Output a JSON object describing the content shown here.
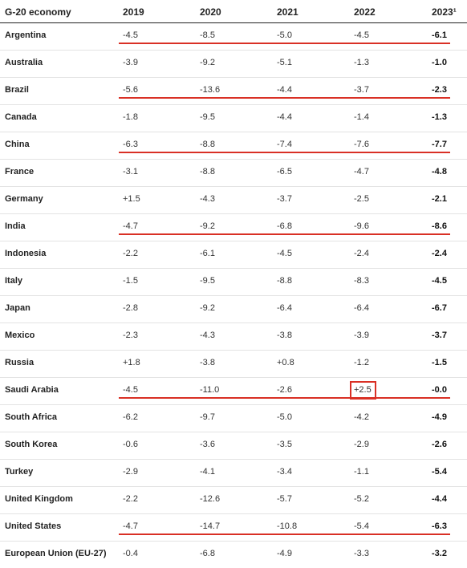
{
  "table": {
    "headers": [
      "G-20 economy",
      "2019",
      "2020",
      "2021",
      "2022",
      "2023¹"
    ],
    "rows": [
      {
        "country": "Argentina",
        "values": [
          "-4.5",
          "-8.5",
          "-5.0",
          "-4.5",
          "-6.1"
        ]
      },
      {
        "country": "Australia",
        "values": [
          "-3.9",
          "-9.2",
          "-5.1",
          "-1.3",
          "-1.0"
        ]
      },
      {
        "country": "Brazil",
        "values": [
          "-5.6",
          "-13.6",
          "-4.4",
          "-3.7",
          "-2.3"
        ]
      },
      {
        "country": "Canada",
        "values": [
          "-1.8",
          "-9.5",
          "-4.4",
          "-1.4",
          "-1.3"
        ]
      },
      {
        "country": "China",
        "values": [
          "-6.3",
          "-8.8",
          "-7.4",
          "-7.6",
          "-7.7"
        ]
      },
      {
        "country": "France",
        "values": [
          "-3.1",
          "-8.8",
          "-6.5",
          "-4.7",
          "-4.8"
        ]
      },
      {
        "country": "Germany",
        "values": [
          "+1.5",
          "-4.3",
          "-3.7",
          "-2.5",
          "-2.1"
        ]
      },
      {
        "country": "India",
        "values": [
          "-4.7",
          "-9.2",
          "-6.8",
          "-9.6",
          "-8.6"
        ]
      },
      {
        "country": "Indonesia",
        "values": [
          "-2.2",
          "-6.1",
          "-4.5",
          "-2.4",
          "-2.4"
        ]
      },
      {
        "country": "Italy",
        "values": [
          "-1.5",
          "-9.5",
          "-8.8",
          "-8.3",
          "-4.5"
        ]
      },
      {
        "country": "Japan",
        "values": [
          "-2.8",
          "-9.2",
          "-6.4",
          "-6.4",
          "-6.7"
        ]
      },
      {
        "country": "Mexico",
        "values": [
          "-2.3",
          "-4.3",
          "-3.8",
          "-3.9",
          "-3.7"
        ]
      },
      {
        "country": "Russia",
        "values": [
          "+1.8",
          "-3.8",
          "+0.8",
          "-1.2",
          "-1.5"
        ]
      },
      {
        "country": "Saudi Arabia",
        "values": [
          "-4.5",
          "-11.0",
          "-2.6",
          "+2.5",
          "-0.0"
        ]
      },
      {
        "country": "South Africa",
        "values": [
          "-6.2",
          "-9.7",
          "-5.0",
          "-4.2",
          "-4.9"
        ]
      },
      {
        "country": "South Korea",
        "values": [
          "-0.6",
          "-3.6",
          "-3.5",
          "-2.9",
          "-2.6"
        ]
      },
      {
        "country": "Turkey",
        "values": [
          "-2.9",
          "-4.1",
          "-3.4",
          "-1.1",
          "-5.4"
        ]
      },
      {
        "country": "United Kingdom",
        "values": [
          "-2.2",
          "-12.6",
          "-5.7",
          "-5.2",
          "-4.4"
        ]
      },
      {
        "country": "United States",
        "values": [
          "-4.7",
          "-14.7",
          "-10.8",
          "-5.4",
          "-6.3"
        ]
      },
      {
        "country": "European Union (EU-27)",
        "values": [
          "-0.4",
          "-6.8",
          "-4.9",
          "-3.3",
          "-3.2"
        ]
      }
    ]
  },
  "annotations": {
    "color": "#d93025",
    "underlined_rows": [
      "Argentina",
      "Brazil",
      "China",
      "India",
      "Saudi Arabia",
      "United States"
    ],
    "boxed_cell": {
      "country": "Saudi Arabia",
      "year": "2022"
    }
  }
}
